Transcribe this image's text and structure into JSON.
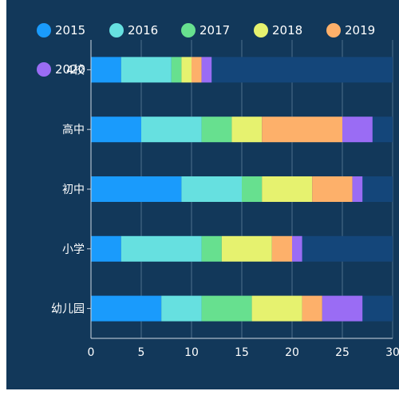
{
  "chart_data": {
    "type": "bar",
    "orientation": "horizontal",
    "stacked": true,
    "categories": [
      "幼儿园",
      "小学",
      "初中",
      "高中",
      "4校"
    ],
    "series": [
      {
        "name": "2015",
        "color": "#1a9bfc",
        "values": [
          7,
          3,
          9,
          5,
          3
        ]
      },
      {
        "name": "2016",
        "color": "#66e0e0",
        "values": [
          4,
          8,
          6,
          6,
          5
        ]
      },
      {
        "name": "2017",
        "color": "#67e08f",
        "values": [
          5,
          2,
          2,
          3,
          1
        ]
      },
      {
        "name": "2018",
        "color": "#e6f26f",
        "values": [
          5,
          5,
          5,
          3,
          1
        ]
      },
      {
        "name": "2019",
        "color": "#fdb06a",
        "values": [
          2,
          2,
          4,
          8,
          1
        ]
      },
      {
        "name": "2020",
        "color": "#9a6cf4",
        "values": [
          4,
          1,
          1,
          3,
          1
        ]
      }
    ],
    "remainder_color": "#14467a",
    "xlim": [
      0,
      30
    ],
    "xticks": [
      0,
      5,
      10,
      15,
      20,
      25,
      30
    ],
    "grid": true,
    "legend_position": "top-left"
  }
}
